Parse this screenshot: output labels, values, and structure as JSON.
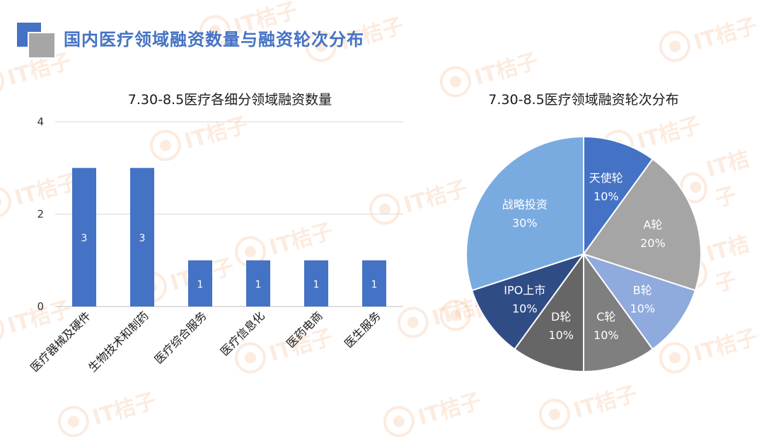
{
  "page": {
    "title": "国内医疗领域融资数量与融资轮次分布",
    "watermark": "IT桔子",
    "accent_color": "#4472c4"
  },
  "chart_data": [
    {
      "type": "bar",
      "title": "7.30-8.5医疗各细分领域融资数量",
      "categories": [
        "医疗器械及硬件",
        "生物技术和制药",
        "医疗综合服务",
        "医疗信息化",
        "医药电商",
        "医生服务"
      ],
      "values": [
        3,
        3,
        1,
        1,
        1,
        1
      ],
      "ylim": [
        0,
        4
      ],
      "yticks": [
        "0",
        "2",
        "4"
      ],
      "data_labels": [
        "3",
        "3",
        "1",
        "1",
        "1",
        "1"
      ],
      "xlabel": "",
      "ylabel": "",
      "grid": true,
      "color": "#4472c4"
    },
    {
      "type": "pie",
      "title": "7.30-8.5医疗领域融资轮次分布",
      "slices": [
        {
          "label": "天使轮",
          "value": 10,
          "pct": "10%",
          "color": "#4472c4"
        },
        {
          "label": "A轮",
          "value": 20,
          "pct": "20%",
          "color": "#a5a5a5"
        },
        {
          "label": "B轮",
          "value": 10,
          "pct": "10%",
          "color": "#8faadc"
        },
        {
          "label": "C轮",
          "value": 10,
          "pct": "10%",
          "color": "#7f7f7f"
        },
        {
          "label": "D轮",
          "value": 10,
          "pct": "10%",
          "color": "#666666"
        },
        {
          "label": "IPO上市",
          "value": 10,
          "pct": "10%",
          "color": "#2f4c85"
        },
        {
          "label": "战略投资",
          "value": 30,
          "pct": "30%",
          "color": "#7aabe0"
        }
      ]
    }
  ]
}
